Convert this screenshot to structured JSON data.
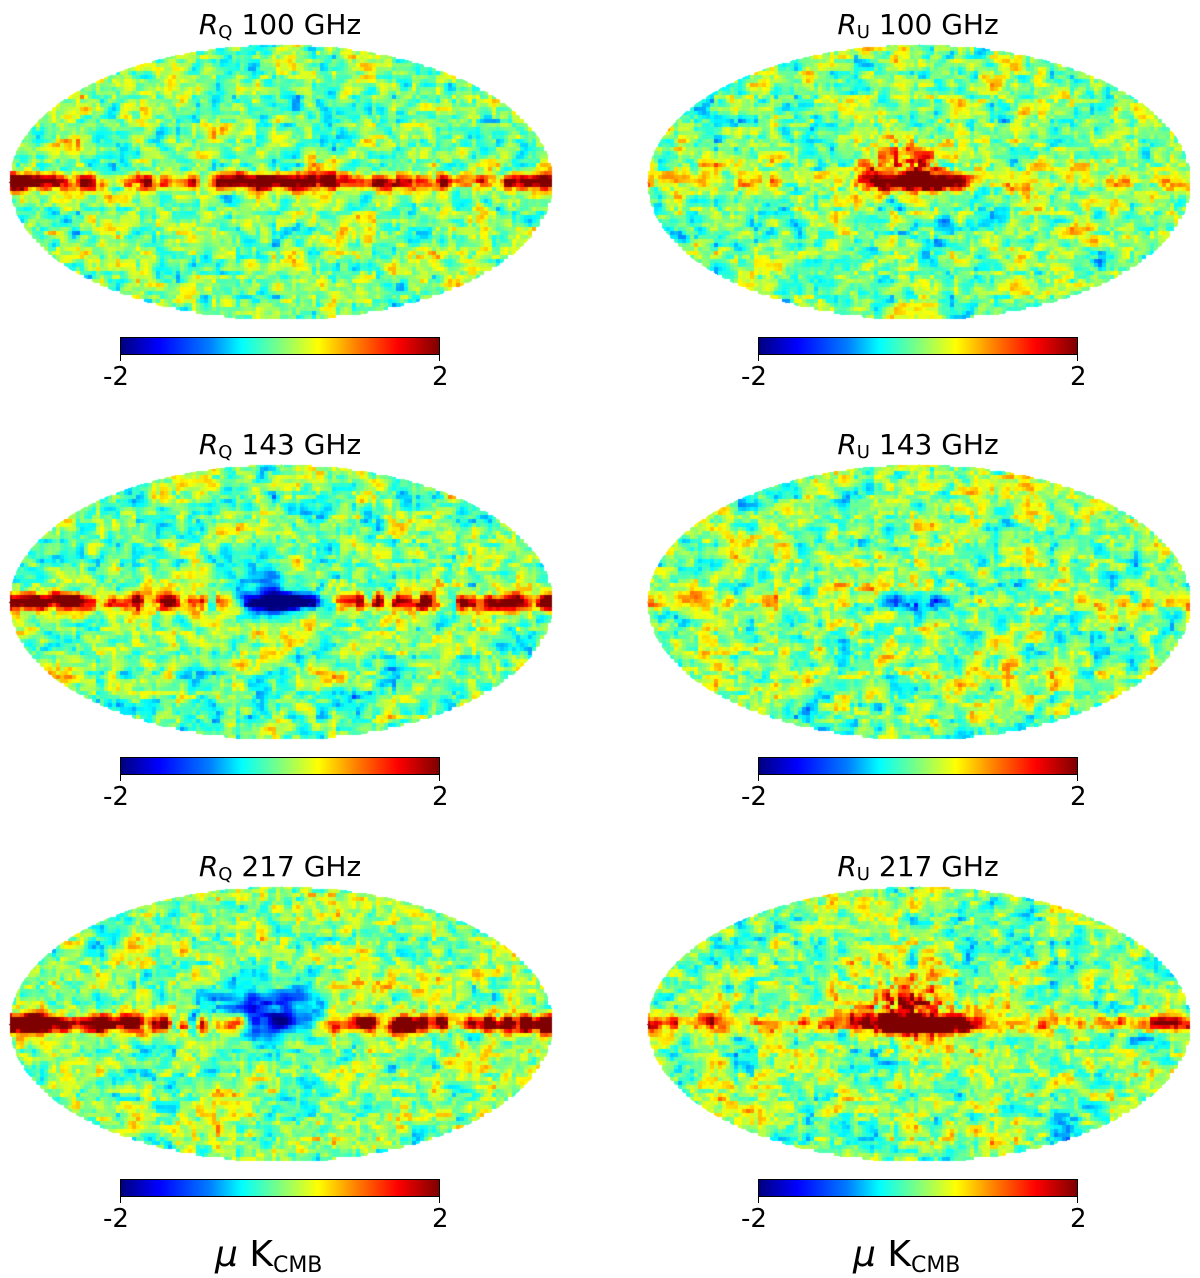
{
  "panels": [
    {
      "id": "rq-100",
      "symbol": "R",
      "sub": "Q",
      "freq": "100 GHz",
      "seed": 11,
      "plane": 1.0,
      "core": 1.0,
      "blob": 0.0,
      "min_label": "-2",
      "max_label": "2"
    },
    {
      "id": "ru-100",
      "symbol": "R",
      "sub": "U",
      "freq": "100 GHz",
      "seed": 23,
      "plane": 0.25,
      "core": 1.0,
      "blob": 1.0,
      "min_label": "-2",
      "max_label": "2"
    },
    {
      "id": "rq-143",
      "symbol": "R",
      "sub": "Q",
      "freq": "143 GHz",
      "seed": 37,
      "plane": 1.0,
      "core": -1.0,
      "blob": -0.6,
      "min_label": "-2",
      "max_label": "2"
    },
    {
      "id": "ru-143",
      "symbol": "R",
      "sub": "U",
      "freq": "143 GHz",
      "seed": 41,
      "plane": 0.3,
      "core": -0.3,
      "blob": 0.2,
      "min_label": "-2",
      "max_label": "2"
    },
    {
      "id": "rq-217",
      "symbol": "R",
      "sub": "Q",
      "freq": "217 GHz",
      "seed": 53,
      "plane": 1.4,
      "core": -0.3,
      "blob": -1.0,
      "min_label": "-2",
      "max_label": "2",
      "unit": "K",
      "unit_sub": "CMB",
      "unit_prefix": "μ"
    },
    {
      "id": "ru-217",
      "symbol": "R",
      "sub": "U",
      "freq": "217 GHz",
      "seed": 67,
      "plane": 0.5,
      "core": 1.2,
      "blob": 1.3,
      "min_label": "-2",
      "max_label": "2",
      "unit": "K",
      "unit_sub": "CMB",
      "unit_prefix": "μ"
    }
  ],
  "colormap": {
    "stops": [
      "#00007f",
      "#0000ff",
      "#007fff",
      "#00ffff",
      "#7fff7f",
      "#ffff00",
      "#ff7f00",
      "#ff0000",
      "#7f0000"
    ]
  }
}
